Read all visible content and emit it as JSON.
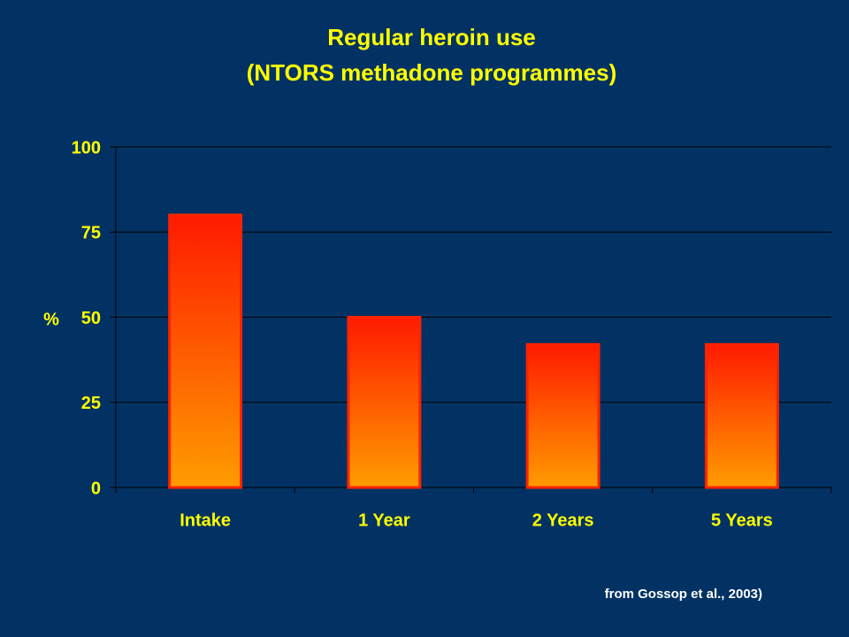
{
  "chart_data": {
    "type": "bar",
    "title": "Regular heroin use",
    "subtitle": "(NTORS methadone programmes)",
    "y_label": "%",
    "categories": [
      "Intake",
      "1 Year",
      "2 Years",
      "5 Years"
    ],
    "values": [
      80,
      50,
      42,
      42
    ],
    "color": "#ff2200",
    "ylim": [
      0,
      100
    ],
    "yticks": [
      0,
      25,
      50,
      75,
      100
    ],
    "grid": true,
    "source": "from Gossop et al., 2003)"
  }
}
